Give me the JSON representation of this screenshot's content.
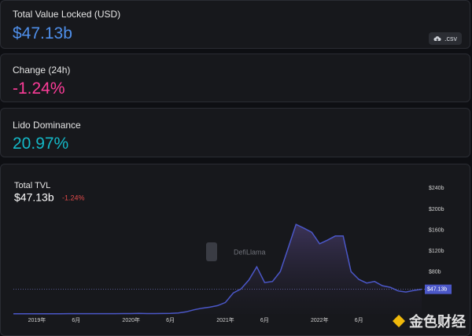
{
  "cards": [
    {
      "label": "Total Value Locked (USD)",
      "value": "$47.13b",
      "color": "#4f8fea"
    },
    {
      "label": "Change (24h)",
      "value": "-1.24%",
      "color": "#fd3c99"
    },
    {
      "label": "Lido Dominance",
      "value": "20.97%",
      "color": "#14b8c7"
    }
  ],
  "csv_button": ".csv",
  "watermark": "DefiLlama",
  "overlay_watermark": "金色财经",
  "chart_data": {
    "type": "area",
    "title": "Total TVL",
    "header_value": "$47.13b",
    "header_change": "-1.24%",
    "color": "#4b57c8",
    "x": [
      "2018-10",
      "2018-11",
      "2018-12",
      "2019-01",
      "2019-02",
      "2019-03",
      "2019-04",
      "2019-05",
      "2019-06",
      "2019-07",
      "2019-08",
      "2019-09",
      "2019-10",
      "2019-11",
      "2019-12",
      "2020-01",
      "2020-02",
      "2020-03",
      "2020-04",
      "2020-05",
      "2020-06",
      "2020-07",
      "2020-08",
      "2020-09",
      "2020-10",
      "2020-11",
      "2020-12",
      "2021-01",
      "2021-02",
      "2021-03",
      "2021-04",
      "2021-05",
      "2021-06",
      "2021-07",
      "2021-08",
      "2021-09",
      "2021-10",
      "2021-11",
      "2021-12",
      "2022-01",
      "2022-02",
      "2022-03",
      "2022-04",
      "2022-05",
      "2022-06",
      "2022-07",
      "2022-08",
      "2022-09",
      "2022-10",
      "2022-11",
      "2022-12",
      "2023-01",
      "2023-02"
    ],
    "values": [
      0.3,
      0.3,
      0.3,
      0.4,
      0.4,
      0.5,
      0.5,
      0.6,
      0.6,
      0.6,
      0.6,
      0.6,
      0.6,
      0.6,
      0.7,
      0.7,
      1,
      0.7,
      0.8,
      0.9,
      1.2,
      2,
      4,
      8,
      11,
      13,
      16,
      22,
      40,
      48,
      65,
      90,
      60,
      62,
      81,
      126,
      171,
      164,
      156,
      134,
      141,
      149,
      149,
      81,
      66,
      59,
      62,
      54,
      51,
      44,
      42,
      45,
      47.13
    ],
    "xlim": [
      "2018-10",
      "2023-02"
    ],
    "xticks": [
      {
        "value": "2019-01",
        "label": "2019年"
      },
      {
        "value": "2019-06",
        "label": "6月"
      },
      {
        "value": "2020-01",
        "label": "2020年"
      },
      {
        "value": "2020-06",
        "label": "6月"
      },
      {
        "value": "2021-01",
        "label": "2021年"
      },
      {
        "value": "2021-06",
        "label": "6月"
      },
      {
        "value": "2022-01",
        "label": "2022年"
      },
      {
        "value": "2022-06",
        "label": "6月"
      }
    ],
    "ylim": [
      0,
      260
    ],
    "yticks": [
      {
        "value": 80,
        "label": "$80b"
      },
      {
        "value": 120,
        "label": "$120b"
      },
      {
        "value": 160,
        "label": "$160b"
      },
      {
        "value": 200,
        "label": "$200b"
      },
      {
        "value": 240,
        "label": "$240b"
      }
    ]
  }
}
